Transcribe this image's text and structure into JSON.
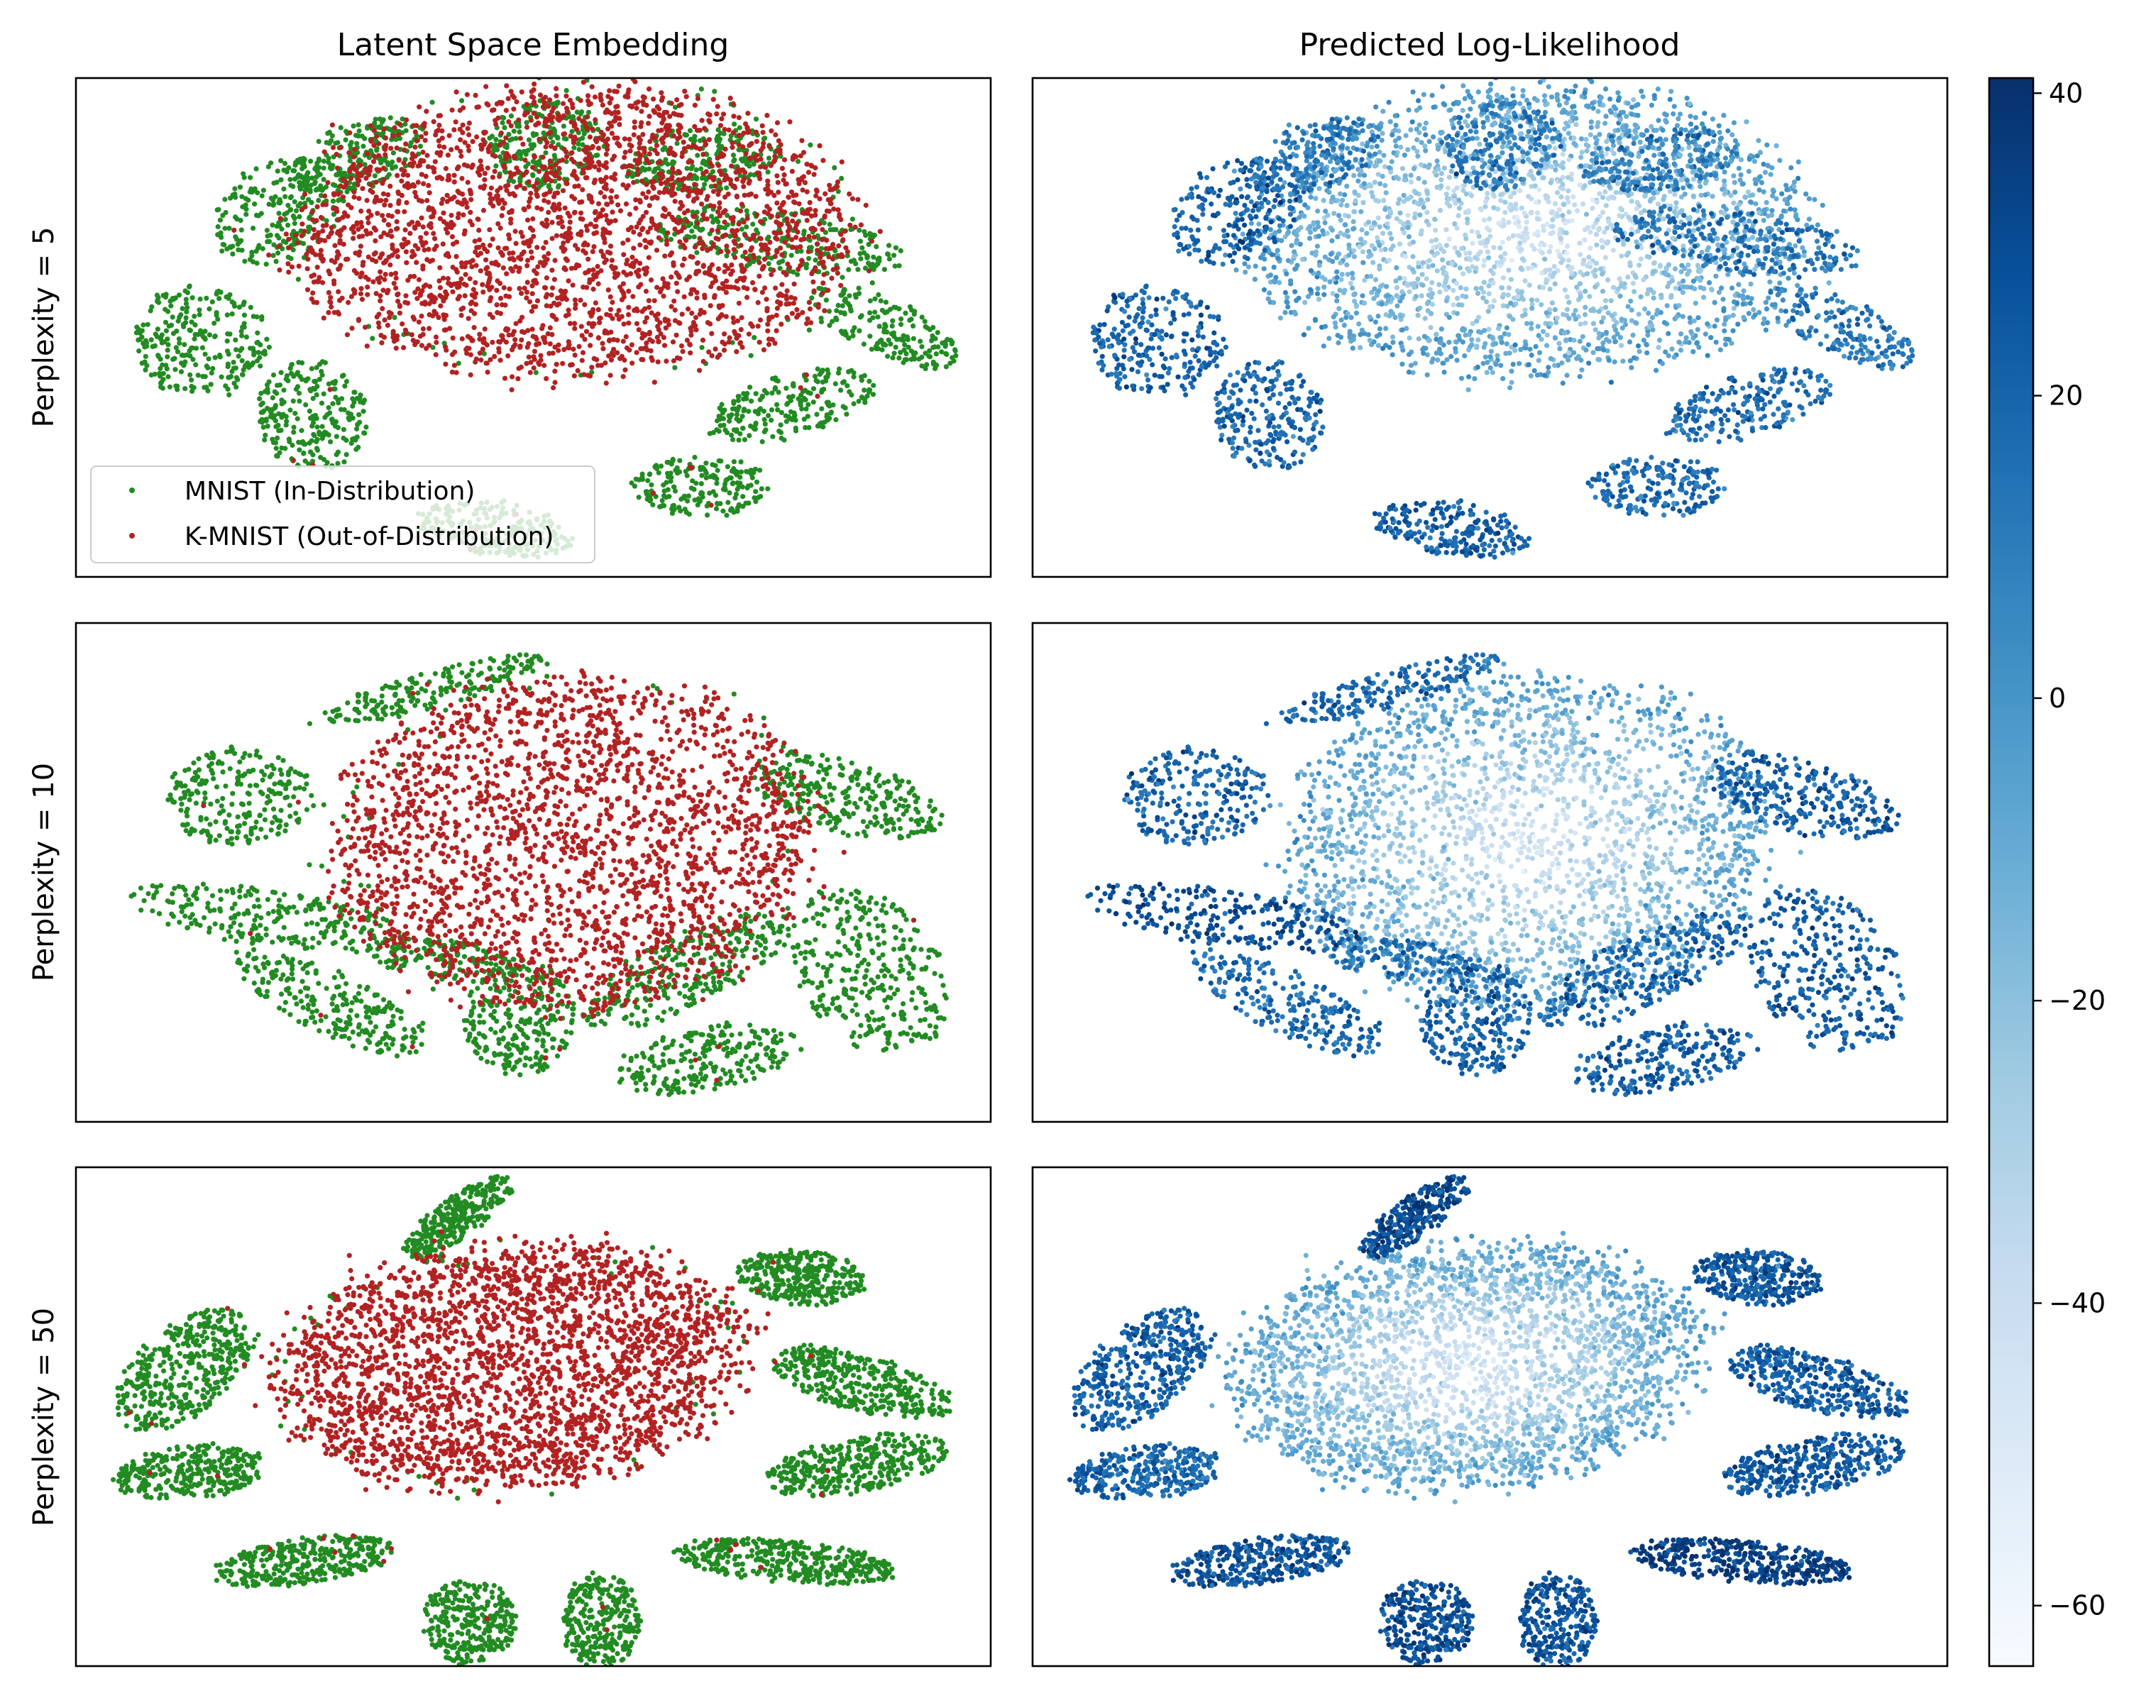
{
  "figure": {
    "column_titles": [
      "Latent Space Embedding",
      "Predicted Log-Likelihood"
    ],
    "row_labels": [
      "Perplexity = 5",
      "Perplexity = 10",
      "Perplexity = 50"
    ]
  },
  "legend": {
    "placement": "lower-left of top-left panel",
    "entries": [
      {
        "label": "MNIST (In-Distribution)",
        "color": "#228b22"
      },
      {
        "label": "K-MNIST (Out-of-Distribution)",
        "color": "#b22222"
      }
    ]
  },
  "colors": {
    "mnist": "#228b22",
    "kmnist": "#b22222",
    "colormap": "Blues",
    "colormap_stops": [
      "#f7fbff",
      "#deebf7",
      "#c6dbef",
      "#9ecae1",
      "#6baed6",
      "#4292c6",
      "#2171b5",
      "#08519c",
      "#08306b"
    ]
  },
  "colorbar": {
    "range": [
      -64,
      41
    ],
    "ticks": [
      40,
      20,
      0,
      -20,
      -40,
      -60
    ],
    "tick_labels": [
      "40",
      "20",
      "0",
      "−20",
      "−40",
      "−60"
    ]
  },
  "chart_data": [
    {
      "type": "scatter",
      "title": "Latent Space Embedding",
      "row": "Perplexity = 5",
      "axes_ticks": "none",
      "series": [
        {
          "name": "MNIST (In-Distribution)",
          "color": "#228b22",
          "points": 6500
        },
        {
          "name": "K-MNIST (Out-of-Distribution)",
          "color": "#b22222",
          "points": 5500
        }
      ],
      "legend": "lower-left"
    },
    {
      "type": "scatter",
      "title": "Predicted Log-Likelihood",
      "row": "Perplexity = 5",
      "axes_ticks": "none",
      "color_encoding": "log-likelihood",
      "value_range": [
        -64,
        41
      ]
    },
    {
      "type": "scatter",
      "title": "Latent Space Embedding",
      "row": "Perplexity = 10",
      "axes_ticks": "none",
      "series": [
        {
          "name": "MNIST (In-Distribution)",
          "color": "#228b22"
        },
        {
          "name": "K-MNIST (Out-of-Distribution)",
          "color": "#b22222"
        }
      ]
    },
    {
      "type": "scatter",
      "title": "Predicted Log-Likelihood",
      "row": "Perplexity = 10",
      "axes_ticks": "none",
      "color_encoding": "log-likelihood",
      "value_range": [
        -64,
        41
      ]
    },
    {
      "type": "scatter",
      "title": "Latent Space Embedding",
      "row": "Perplexity = 50",
      "axes_ticks": "none",
      "series": [
        {
          "name": "MNIST (In-Distribution)",
          "color": "#228b22"
        },
        {
          "name": "K-MNIST (Out-of-Distribution)",
          "color": "#b22222"
        }
      ]
    },
    {
      "type": "scatter",
      "title": "Predicted Log-Likelihood",
      "row": "Perplexity = 50",
      "axes_ticks": "none",
      "color_encoding": "log-likelihood",
      "value_range": [
        -64,
        41
      ]
    }
  ]
}
